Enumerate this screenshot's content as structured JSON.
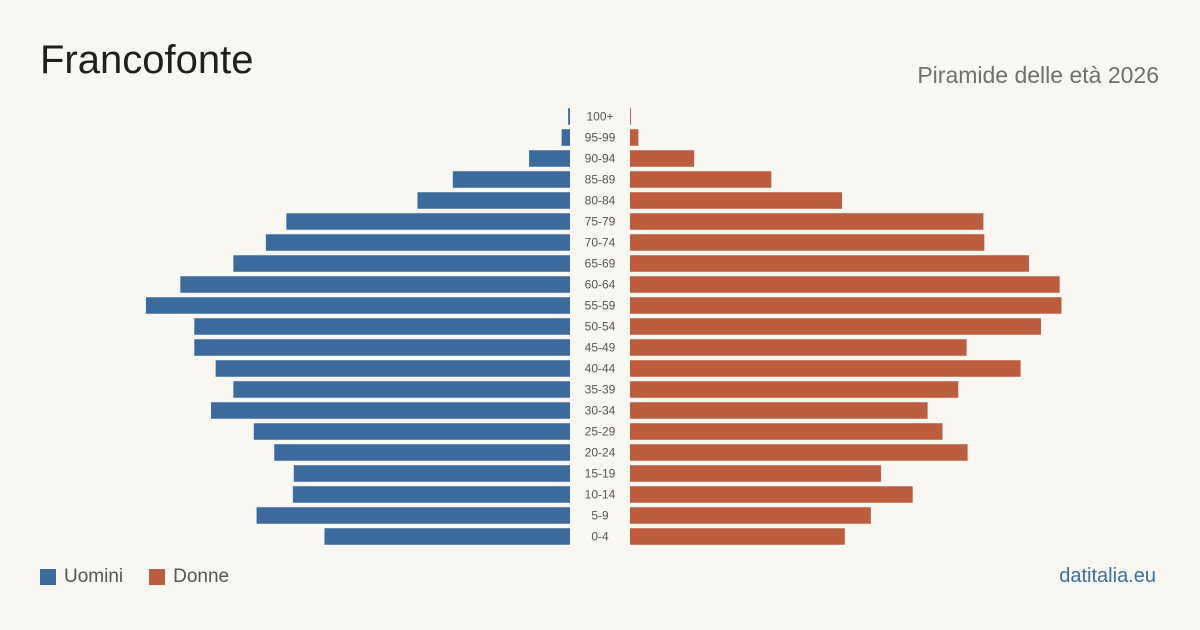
{
  "header": {
    "title": "Francofonte",
    "subtitle": "Piramide delle età 2026"
  },
  "legend": {
    "men_label": "Uomini",
    "women_label": "Donne"
  },
  "footer": {
    "brand": "datitalia.eu"
  },
  "colors": {
    "men": "#3b6a9c",
    "women": "#bc5e3d",
    "background": "#f9f7f2"
  },
  "chart_data": {
    "type": "bar",
    "orientation": "horizontal-pyramid",
    "categories": [
      "100+",
      "95-99",
      "90-94",
      "85-89",
      "80-84",
      "75-79",
      "70-74",
      "65-69",
      "60-64",
      "55-59",
      "50-54",
      "45-49",
      "40-44",
      "35-39",
      "30-34",
      "25-29",
      "20-24",
      "15-19",
      "10-14",
      "5-9",
      "0-4"
    ],
    "series": [
      {
        "name": "Uomini",
        "values": [
          2,
          9,
          44,
          126,
          164,
          305,
          327,
          362,
          419,
          456,
          404,
          404,
          381,
          362,
          386,
          340,
          318,
          297,
          298,
          337,
          264
        ]
      },
      {
        "name": "Donne",
        "values": [
          1,
          9,
          69,
          152,
          228,
          380,
          381,
          429,
          462,
          464,
          442,
          362,
          420,
          353,
          320,
          336,
          363,
          270,
          304,
          259,
          231
        ]
      }
    ],
    "xlim": [
      0,
      480
    ],
    "grid": false,
    "legend_position": "bottom-left"
  }
}
